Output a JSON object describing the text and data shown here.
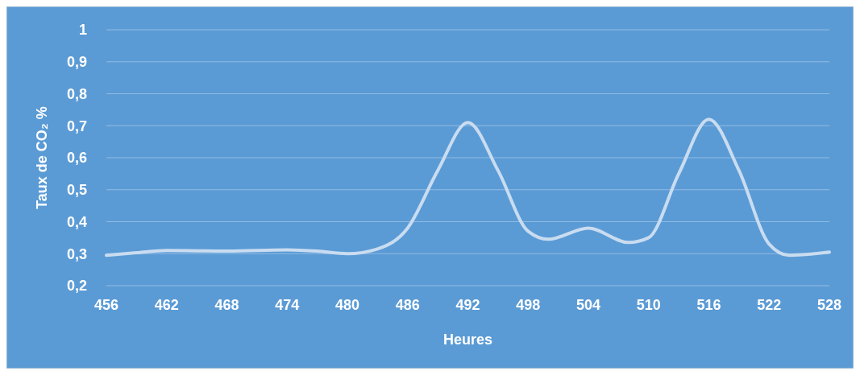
{
  "chart_data": {
    "type": "line",
    "xlabel": "Heures",
    "ylabel": "Taux de CO₂ %",
    "x": [
      456,
      459,
      462,
      468,
      474,
      477,
      480,
      483,
      486,
      489,
      492,
      495,
      498,
      500,
      504,
      508,
      510,
      513,
      516,
      519,
      522,
      524,
      528
    ],
    "series": [
      {
        "color": "#c9dcf0",
        "values": [
          0.295,
          0.303,
          0.31,
          0.308,
          0.312,
          0.308,
          0.3,
          0.315,
          0.38,
          0.56,
          0.71,
          0.56,
          0.37,
          0.345,
          0.38,
          0.335,
          0.35,
          0.55,
          0.72,
          0.56,
          0.33,
          0.295,
          0.305
        ]
      }
    ],
    "xlim": [
      456,
      528
    ],
    "xticks": [
      456,
      462,
      468,
      474,
      480,
      486,
      492,
      498,
      504,
      510,
      516,
      522,
      528
    ],
    "ylim": [
      0.2,
      1
    ],
    "yticks": [
      {
        "value": 0.2,
        "label": "0,2"
      },
      {
        "value": 0.3,
        "label": "0,3"
      },
      {
        "value": 0.4,
        "label": "0,4"
      },
      {
        "value": 0.5,
        "label": "0,5"
      },
      {
        "value": 0.6,
        "label": "0,6"
      },
      {
        "value": 0.7,
        "label": "0,7"
      },
      {
        "value": 0.8,
        "label": "0,8"
      },
      {
        "value": 0.9,
        "label": "0,9"
      },
      {
        "value": 1,
        "label": "1"
      }
    ],
    "grid": "y",
    "marker": "none",
    "line_style": "solid"
  }
}
